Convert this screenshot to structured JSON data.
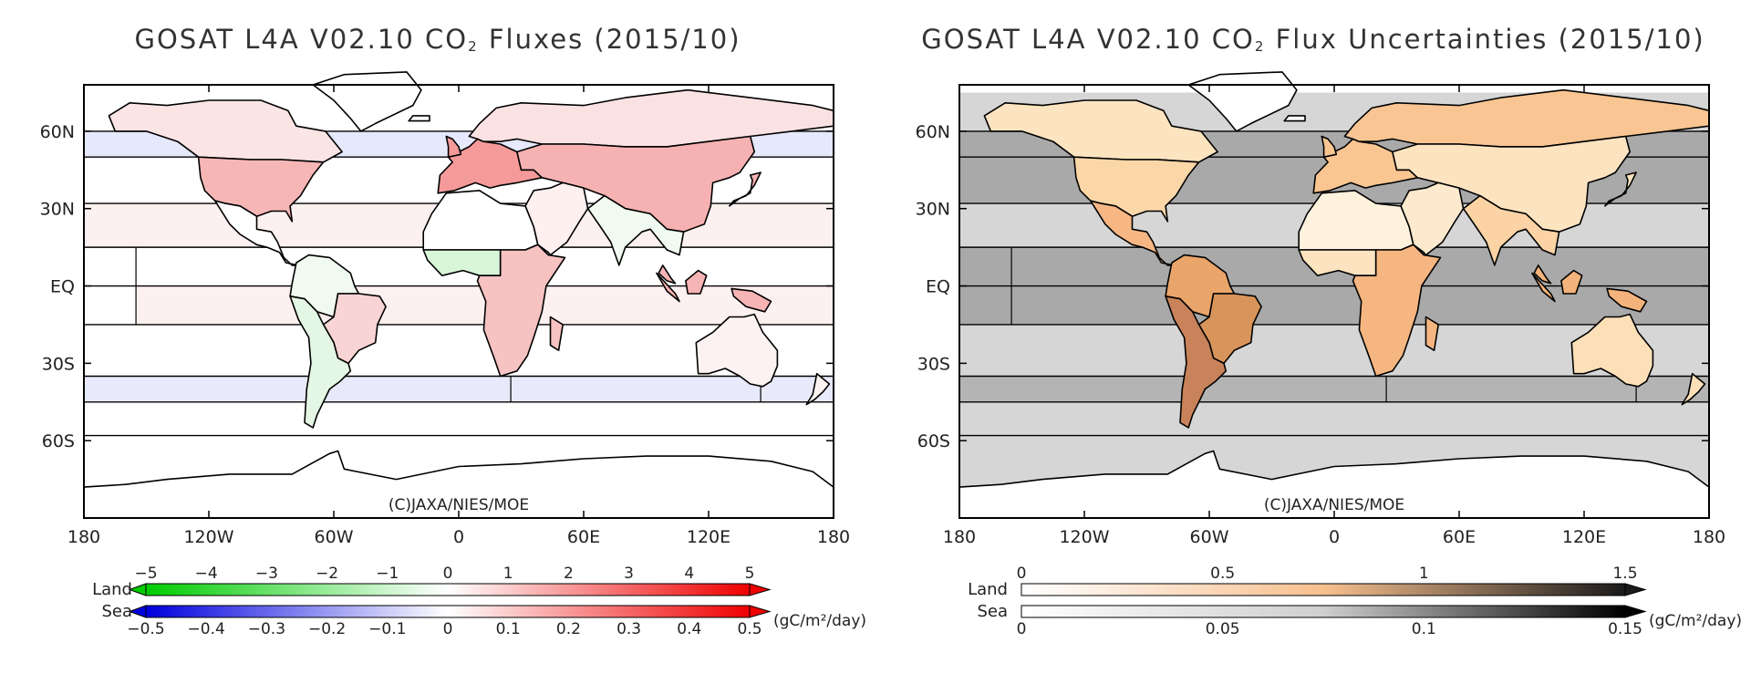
{
  "credit": "(C)JAXA/NIES/MOE",
  "units": "(gC/m²/day)",
  "legend_labels": {
    "land": "Land",
    "sea": "Sea"
  },
  "lat_labels": [
    "60N",
    "30N",
    "EQ",
    "30S",
    "60S"
  ],
  "lon_labels": [
    "180",
    "120W",
    "60W",
    "0",
    "60E",
    "120E",
    "180"
  ],
  "colors": {
    "land_outline": "#000000",
    "frame": "#000000"
  },
  "panels": [
    {
      "id": "fluxes",
      "title_pre": "GOSAT L4A V02.10 CO",
      "title_sub": "2",
      "title_post": " Fluxes (2015/10)",
      "land_ticks": [
        "−5",
        "−4",
        "−3",
        "−2",
        "−1",
        "0",
        "1",
        "2",
        "3",
        "4",
        "5"
      ],
      "sea_ticks": [
        "−0.5",
        "−0.4",
        "−0.3",
        "−0.2",
        "−0.1",
        "0",
        "0.1",
        "0.2",
        "0.3",
        "0.4",
        "0.5"
      ],
      "land_gradient": [
        "#00cc00",
        "#ffffff",
        "#ee0000"
      ],
      "sea_gradient": [
        "#0000dd",
        "#ffffff",
        "#ee0000"
      ],
      "colorbar_style": "diverging",
      "ocean_bands": [
        {
          "lat": [
            75,
            60
          ],
          "lon": [
            -180,
            180
          ],
          "color": "#ffffff"
        },
        {
          "lat": [
            60,
            50
          ],
          "lon": [
            -180,
            180
          ],
          "color": "#e6e8fb"
        },
        {
          "lat": [
            50,
            32
          ],
          "lon": [
            -180,
            180
          ],
          "color": "#ffffff"
        },
        {
          "lat": [
            32,
            15
          ],
          "lon": [
            -180,
            180
          ],
          "color": "#fdf0f0"
        },
        {
          "lat": [
            15,
            0
          ],
          "lon": [
            -180,
            180
          ],
          "color": "#ffffff"
        },
        {
          "lat": [
            0,
            -15
          ],
          "lon": [
            -180,
            -155
          ],
          "color": "#ffffff"
        },
        {
          "lat": [
            0,
            -15
          ],
          "lon": [
            -155,
            180
          ],
          "color": "#fdf0f0"
        },
        {
          "lat": [
            -15,
            -35
          ],
          "lon": [
            -180,
            180
          ],
          "color": "#ffffff"
        },
        {
          "lat": [
            -35,
            -45
          ],
          "lon": [
            -180,
            180
          ],
          "color": "#e8eafb"
        },
        {
          "lat": [
            -45,
            -58
          ],
          "lon": [
            -180,
            180
          ],
          "color": "#ffffff"
        },
        {
          "lat": [
            -58,
            -90
          ],
          "lon": [
            -180,
            180
          ],
          "color": "#ffffff"
        }
      ],
      "land_colors": {
        "na_boreal": "#fbe4e4",
        "na_temperate": "#f7b6b6",
        "central_america": "#ffffff",
        "sa_tropical": "#f0faf0",
        "sa_east": "#f9d4d4",
        "sa_temperate": "#e4f7e4",
        "n_africa": "#ffffff",
        "sahel": "#d8f5d8",
        "s_africa": "#f7c2c2",
        "eurasia_boreal": "#fbe2e2",
        "europe": "#f59a9a",
        "asia_temperate": "#f6b2b2",
        "middle_east": "#fff0f0",
        "india": "#f0faf0",
        "se_asia": "#f6b4b4",
        "australia": "#fdf2f2",
        "greenland": "#ffffff",
        "antarctica": "#ffffff"
      }
    },
    {
      "id": "uncertainties",
      "title_pre": "GOSAT L4A V02.10 CO",
      "title_sub": "2",
      "title_post": " Flux Uncertainties (2015/10)",
      "land_ticks": [
        "0",
        "0.5",
        "1",
        "1.5"
      ],
      "sea_ticks": [
        "0",
        "0.05",
        "0.1",
        "0.15"
      ],
      "land_gradient": [
        "#ffffff",
        "#f7c08f",
        "#1a1a1a"
      ],
      "sea_gradient": [
        "#ffffff",
        "#cfcfcf",
        "#000000"
      ],
      "colorbar_style": "sequential",
      "ocean_bands": [
        {
          "lat": [
            75,
            60
          ],
          "lon": [
            -180,
            180
          ],
          "color": "#d6d6d6"
        },
        {
          "lat": [
            60,
            32
          ],
          "lon": [
            -180,
            180
          ],
          "color": "#a9a9a9"
        },
        {
          "lat": [
            32,
            15
          ],
          "lon": [
            -180,
            180
          ],
          "color": "#d6d6d6"
        },
        {
          "lat": [
            15,
            -15
          ],
          "lon": [
            -180,
            180
          ],
          "color": "#a9a9a9"
        },
        {
          "lat": [
            -15,
            -35
          ],
          "lon": [
            -180,
            180
          ],
          "color": "#d6d6d6"
        },
        {
          "lat": [
            -35,
            -45
          ],
          "lon": [
            -180,
            180
          ],
          "color": "#b4b4b4"
        },
        {
          "lat": [
            -45,
            -90
          ],
          "lon": [
            -180,
            180
          ],
          "color": "#d6d6d6"
        }
      ],
      "land_colors": {
        "na_boreal": "#fde4c0",
        "na_temperate": "#fbd7a8",
        "central_america": "#f6b784",
        "sa_tropical": "#e9a56a",
        "sa_east": "#d8955b",
        "sa_temperate": "#c8835a",
        "n_africa": "#fff2dd",
        "sahel": "#fde3c0",
        "s_africa": "#f6b681",
        "eurasia_boreal": "#f8c593",
        "europe": "#f9c591",
        "asia_temperate": "#fde4c0",
        "middle_east": "#fde9cd",
        "india": "#fbd3a4",
        "se_asia": "#f4b37b",
        "australia": "#fde0b8",
        "greenland": "#ffffff",
        "antarctica": "#ffffff"
      }
    }
  ]
}
